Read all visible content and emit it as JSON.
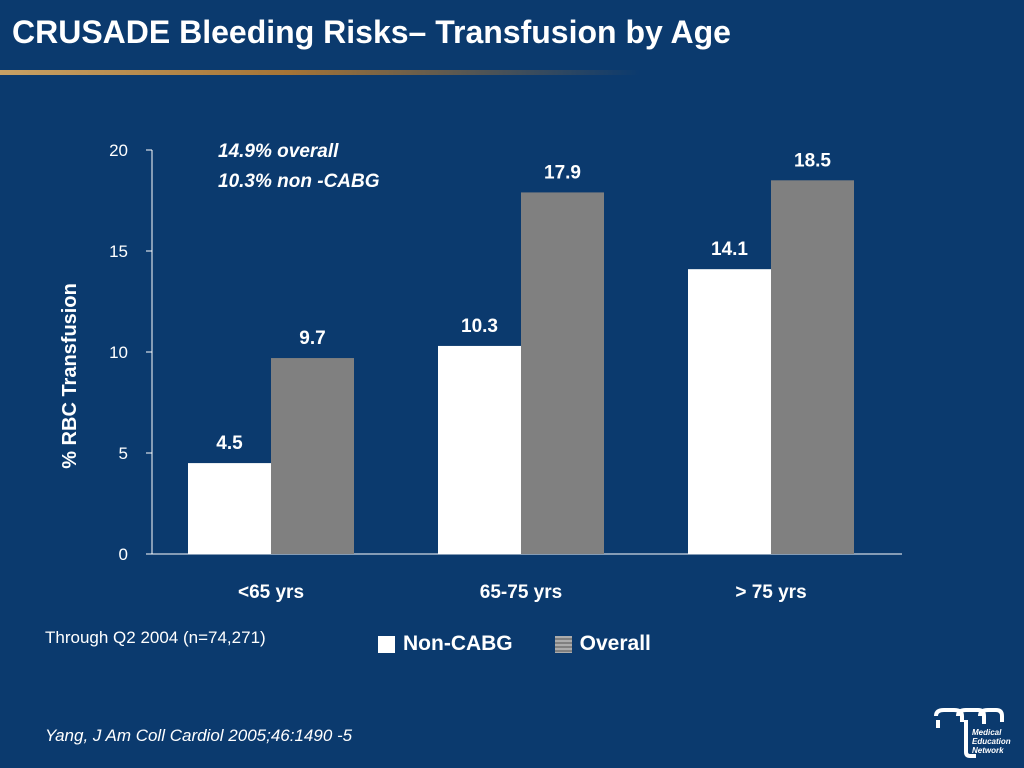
{
  "slide": {
    "title": "CRUSADE Bleeding Risks– Transfusion by Age",
    "footnote": "Through Q2 2004 (n=74,271)",
    "citation": "Yang, J Am Coll Cardiol 2005;46:1490 -5",
    "logo_lines": [
      "Medical",
      "Education",
      "Network"
    ]
  },
  "chart_data": {
    "type": "bar",
    "categories": [
      "<65 yrs",
      "65-75 yrs",
      "> 75 yrs"
    ],
    "series": [
      {
        "name": "Non-CABG",
        "values": [
          4.5,
          10.3,
          14.1
        ],
        "color": "#ffffff"
      },
      {
        "name": "Overall",
        "values": [
          9.7,
          17.9,
          18.5
        ],
        "color": "#808080"
      }
    ],
    "ylabel": "% RBC Transfusion",
    "xlabel": "",
    "ylim": [
      0,
      20
    ],
    "yticks": [
      0,
      5,
      10,
      15,
      20
    ],
    "annotations": [
      "14.9% overall",
      "10.3% non -CABG"
    ],
    "legend_position": "bottom-center",
    "grid": false
  },
  "colors": {
    "background": "#0b3a6e",
    "accent_rule": "#c8a165",
    "text": "#ffffff"
  }
}
